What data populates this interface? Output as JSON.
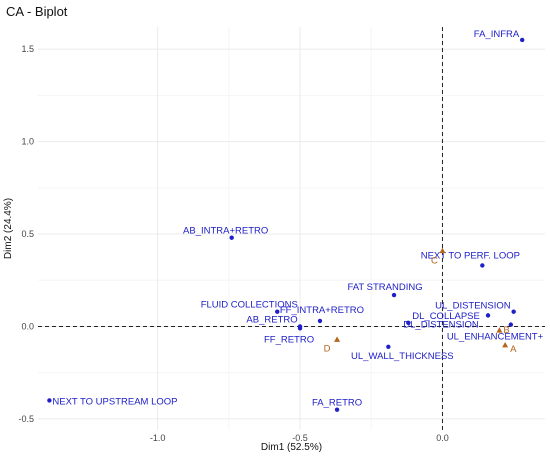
{
  "chart_data": {
    "type": "scatter",
    "title": "CA - Biplot",
    "xlabel": "Dim1 (52.5%)",
    "ylabel": "Dim2 (24.4%)",
    "xlim": [
      -1.42,
      0.36
    ],
    "ylim": [
      -0.56,
      1.62
    ],
    "x_ticks": [
      -1.0,
      -0.5,
      0.0
    ],
    "x_tick_labels": [
      "-1.0",
      "-0.5",
      "0.0"
    ],
    "y_ticks": [
      -0.5,
      0.0,
      0.5,
      1.0,
      1.5
    ],
    "y_tick_labels": [
      "-0.5",
      "0.0",
      "0.5",
      "1.0",
      "1.5"
    ],
    "grid": true,
    "reference_lines": {
      "x": 0,
      "y": 0
    },
    "colors": {
      "columns": "#2020c8",
      "rows": "#b5651d",
      "title": "#111111"
    },
    "series": [
      {
        "points": [
          {
            "label": "FA_INFRA",
            "x": 0.28,
            "y": 1.55
          },
          {
            "label": "AB_INTRA+RETRO",
            "x": -0.74,
            "y": 0.48
          },
          {
            "label": "NEXT TO PERF. LOOP",
            "x": 0.14,
            "y": 0.33
          },
          {
            "label": "FAT STRANDING",
            "x": -0.17,
            "y": 0.17
          },
          {
            "label": "FLUID COLLECTIONS",
            "x": -0.58,
            "y": 0.08
          },
          {
            "label": "UL_DISTENSION",
            "x": 0.25,
            "y": 0.08
          },
          {
            "label": "FF_INTRA+RETRO",
            "x": -0.43,
            "y": 0.03
          },
          {
            "label": "AB_RETRO",
            "x": -0.5,
            "y": 0.0
          },
          {
            "label": "DL_COLLAPSE",
            "x": -0.12,
            "y": 0.02
          },
          {
            "label": "FF_RETRO",
            "x": -0.5,
            "y": -0.01
          },
          {
            "label": "DL_DISTENSION",
            "x": 0.16,
            "y": 0.06
          },
          {
            "label": "UL_ENHANCEMENT+",
            "x": 0.24,
            "y": 0.01
          },
          {
            "label": "UL_WALL_THICKNESS",
            "x": -0.19,
            "y": -0.11
          },
          {
            "label": "NEXT TO UPSTREAM LOOP",
            "x": -1.38,
            "y": -0.4
          },
          {
            "label": "FA_RETRO",
            "x": -0.37,
            "y": -0.45
          }
        ]
      },
      {
        "points": [
          {
            "label": "C",
            "x": 0.0,
            "y": 0.41
          },
          {
            "label": "D",
            "x": -0.37,
            "y": -0.07
          },
          {
            "label": "B",
            "x": 0.2,
            "y": -0.02
          },
          {
            "label": "A",
            "x": 0.22,
            "y": -0.1
          }
        ]
      }
    ]
  }
}
